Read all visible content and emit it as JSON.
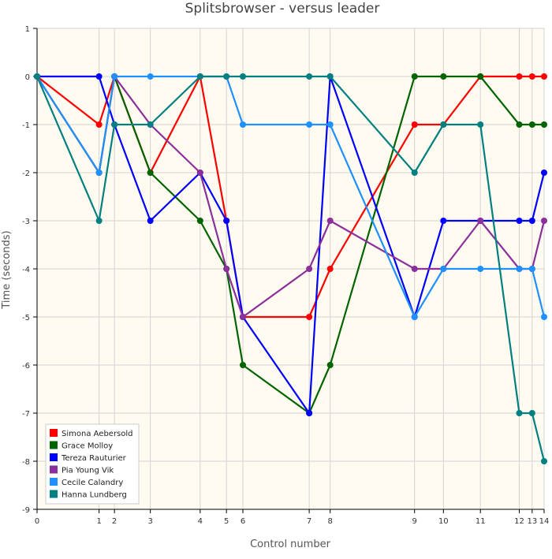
{
  "chart_data": {
    "type": "line",
    "title": "Splitsbrowser - versus leader",
    "xlabel": "Control number",
    "ylabel": "Time (seconds)",
    "ylim": [
      -9,
      1
    ],
    "yticks": [
      1,
      0,
      -1,
      -2,
      -3,
      -4,
      -5,
      -6,
      -7,
      -8,
      -9
    ],
    "x": [
      0,
      1,
      2,
      3,
      4,
      5,
      6,
      7,
      8,
      9,
      10,
      11,
      12,
      13,
      14
    ],
    "x_positions": [
      0,
      23.97,
      29.91,
      43.79,
      63.04,
      73.21,
      79.56,
      105.2,
      113.3,
      145.93,
      157.08,
      171.37,
      186.4,
      191.38,
      196.0
    ],
    "grid": true,
    "legend_position": "bottom-left",
    "series": [
      {
        "name": "Simona Aebersold",
        "color": "#ff0000",
        "values": [
          0,
          -1,
          0,
          -2,
          0,
          -3,
          -5,
          -5,
          -4,
          -1,
          -1,
          0,
          0,
          0,
          0
        ]
      },
      {
        "name": "Grace Molloy",
        "color": "#006400",
        "values": [
          0,
          -2,
          0,
          -2,
          -3,
          -4,
          -6,
          -7,
          -6,
          0,
          0,
          0,
          -1,
          -1,
          -1
        ]
      },
      {
        "name": "Tereza Rauturier",
        "color": "#0000ff",
        "values": [
          0,
          0,
          -1,
          -3,
          -2,
          -3,
          -5,
          -7,
          0,
          -5,
          -3,
          -3,
          -3,
          -3,
          -2
        ]
      },
      {
        "name": "Pia Young Vik",
        "color": "#8b2f9b",
        "values": [
          0,
          -2,
          0,
          -1,
          -2,
          -4,
          -5,
          -4,
          -3,
          -4,
          -4,
          -3,
          -4,
          -4,
          -3
        ]
      },
      {
        "name": "Cecile Calandry",
        "color": "#1e90ff",
        "values": [
          0,
          -2,
          0,
          0,
          0,
          0,
          -1,
          -1,
          -1,
          -5,
          -4,
          -4,
          -4,
          -4,
          -5
        ]
      },
      {
        "name": "Hanna Lundberg",
        "color": "#008080",
        "values": [
          0,
          -3,
          -1,
          -1,
          0,
          0,
          0,
          0,
          0,
          -2,
          -1,
          -1,
          -7,
          -7,
          -8
        ]
      }
    ]
  },
  "colors": {
    "plot_background": "#fffbf0",
    "grid": "#d3d3d3",
    "axis": "#000000"
  }
}
